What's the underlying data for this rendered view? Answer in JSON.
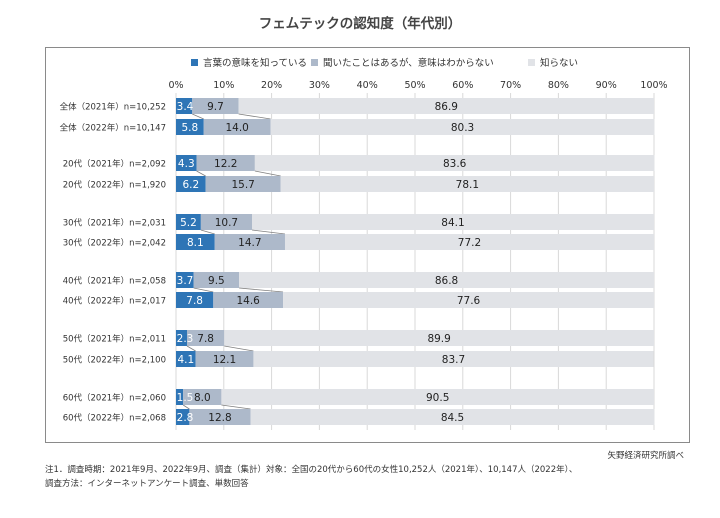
{
  "chart_data": {
    "type": "bar",
    "orientation": "horizontal",
    "stacked": true,
    "percent": true,
    "title": "フェムテックの認知度（年代別）",
    "xlim": [
      0,
      100
    ],
    "xticks": [
      "0%",
      "10%",
      "20%",
      "30%",
      "40%",
      "50%",
      "60%",
      "70%",
      "80%",
      "90%",
      "100%"
    ],
    "legend": {
      "position": "top"
    },
    "categories": [
      "全体（2021年）n=10,252",
      "全体（2022年）n=10,147",
      "20代（2021年）n=2,092",
      "20代（2022年）n=1,920",
      "30代（2021年）n=2,031",
      "30代（2022年）n=2,042",
      "40代（2021年）n=2,058",
      "40代（2022年）n=2,017",
      "50代（2021年）n=2,011",
      "50代（2022年）n=2,100",
      "60代（2021年）n=2,060",
      "60代（2022年）n=2,068"
    ],
    "series": [
      {
        "name": "言葉の意味を知っている",
        "color": "#2e75b6",
        "values": [
          3.4,
          5.8,
          4.3,
          6.2,
          5.2,
          8.1,
          3.7,
          7.8,
          2.3,
          4.1,
          1.5,
          2.8
        ],
        "labels": [
          "3.4",
          "5.8",
          "4.3",
          "6.2",
          "5.2",
          "8.1",
          "3.7",
          "7.8",
          "2.3",
          "4.1",
          "1.5",
          "2.8"
        ]
      },
      {
        "name": "聞いたことはあるが、意味はわからない",
        "color": "#adb9ca",
        "values": [
          9.7,
          14.0,
          12.2,
          15.7,
          10.7,
          14.7,
          9.5,
          14.6,
          7.8,
          12.1,
          8.0,
          12.8
        ],
        "labels": [
          "9.7",
          "14.0",
          "12.2",
          "15.7",
          "10.7",
          "14.7",
          "9.5",
          "14.6",
          "7.8",
          "12.1",
          "8.0",
          "12.8"
        ]
      },
      {
        "name": "知らない",
        "color": "#e1e3e7",
        "values": [
          86.9,
          80.3,
          83.6,
          78.1,
          84.1,
          77.2,
          86.8,
          77.6,
          89.9,
          83.7,
          90.5,
          84.5
        ],
        "labels": [
          "86.9",
          "80.3",
          "83.6",
          "78.1",
          "84.1",
          "77.2",
          "86.8",
          "77.6",
          "89.9",
          "83.7",
          "90.5",
          "84.5"
        ]
      }
    ]
  },
  "source": "矢野経済研究所調べ",
  "notes": [
    "注1．調査時期：2021年9月、2022年9月、調査（集計）対象：全国の20代から60代の女性10,252人（2021年）、10,147人（2022年）、",
    "調査方法：インターネットアンケート調査、単数回答"
  ]
}
